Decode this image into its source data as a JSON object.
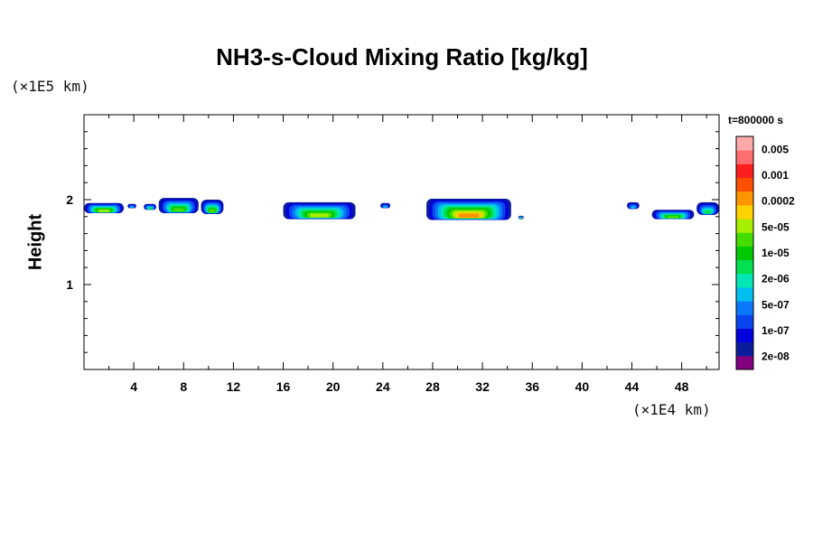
{
  "chart_data": {
    "type": "heatmap",
    "title": "NH3-s-Cloud Mixing Ratio [kg/kg]",
    "ylabel": "Height",
    "xlabel": "",
    "x_unit": "(×1E4 km)",
    "y_unit": "(×1E5 km)",
    "time_label": "t=800000 s",
    "xlim": [
      0,
      51
    ],
    "ylim": [
      0,
      3
    ],
    "x_ticks": [
      4,
      8,
      12,
      16,
      20,
      24,
      28,
      32,
      36,
      40,
      44,
      48
    ],
    "y_ticks": [
      1,
      2
    ],
    "colorbar": {
      "labels": [
        "0.005",
        "0.001",
        "0.0002",
        "5e-05",
        "1e-05",
        "2e-06",
        "5e-07",
        "1e-07",
        "2e-08"
      ],
      "colors": [
        "#800080",
        "#0a1c9c",
        "#0000dc",
        "#0a46ef",
        "#0a78f8",
        "#00bef0",
        "#00e6b4",
        "#00e050",
        "#00c800",
        "#44dd00",
        "#a8ee00",
        "#ffd200",
        "#ff9600",
        "#ff5000",
        "#ff1e1e",
        "#ff6e6e",
        "#ffaaaa"
      ]
    },
    "clouds": [
      {
        "x_start": 0.0,
        "x_end": 3.2,
        "y_bottom": 1.84,
        "y_top": 1.96,
        "max_level": 9
      },
      {
        "x_start": 3.5,
        "x_end": 4.2,
        "y_bottom": 1.9,
        "y_top": 1.95,
        "max_level": 4
      },
      {
        "x_start": 4.8,
        "x_end": 5.8,
        "y_bottom": 1.88,
        "y_top": 1.95,
        "max_level": 6
      },
      {
        "x_start": 6.0,
        "x_end": 9.2,
        "y_bottom": 1.84,
        "y_top": 2.02,
        "max_level": 8
      },
      {
        "x_start": 9.4,
        "x_end": 11.2,
        "y_bottom": 1.83,
        "y_top": 2.0,
        "max_level": 8
      },
      {
        "x_start": 16.0,
        "x_end": 21.8,
        "y_bottom": 1.77,
        "y_top": 1.97,
        "max_level": 9
      },
      {
        "x_start": 23.8,
        "x_end": 24.6,
        "y_bottom": 1.9,
        "y_top": 1.96,
        "max_level": 4
      },
      {
        "x_start": 27.5,
        "x_end": 34.3,
        "y_bottom": 1.76,
        "y_top": 2.01,
        "max_level": 11
      },
      {
        "x_start": 34.9,
        "x_end": 35.3,
        "y_bottom": 1.77,
        "y_top": 1.81,
        "max_level": 7
      },
      {
        "x_start": 43.6,
        "x_end": 44.6,
        "y_bottom": 1.89,
        "y_top": 1.97,
        "max_level": 4
      },
      {
        "x_start": 45.6,
        "x_end": 49.0,
        "y_bottom": 1.77,
        "y_top": 1.88,
        "max_level": 8
      },
      {
        "x_start": 49.2,
        "x_end": 51.0,
        "y_bottom": 1.82,
        "y_top": 1.97,
        "max_level": 6
      }
    ]
  }
}
